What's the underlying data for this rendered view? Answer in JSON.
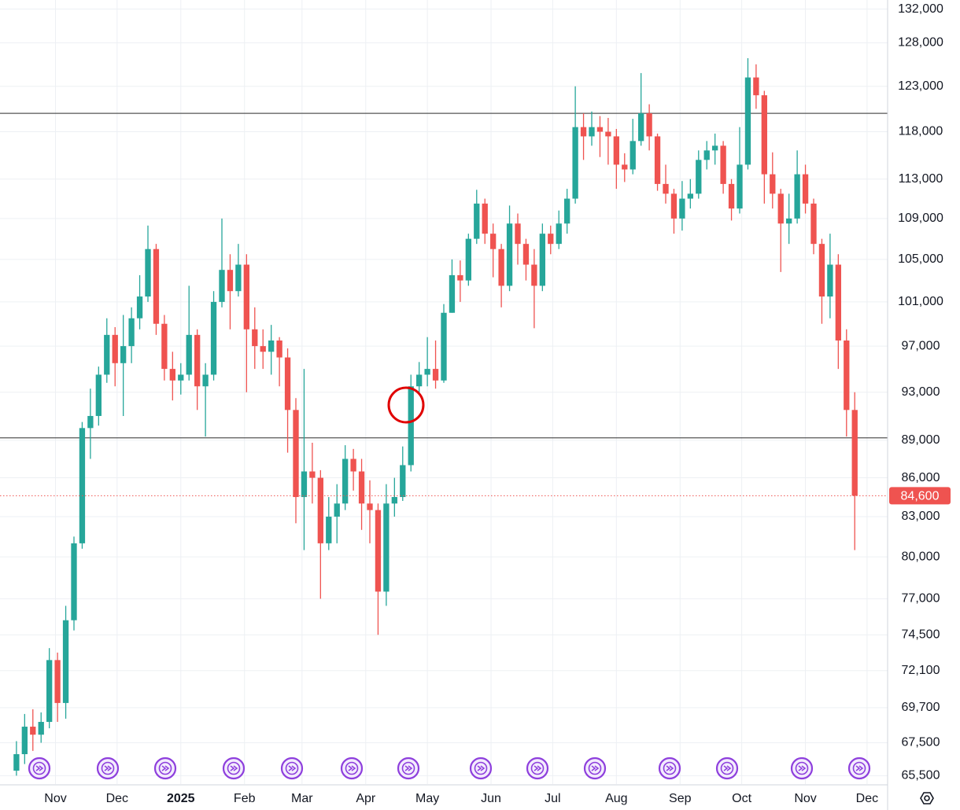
{
  "chart_data": {
    "type": "candlestick",
    "log_scale": true,
    "grid": true,
    "up_color": "#26a69a",
    "down_color": "#ef5350",
    "hline_color": "#555555",
    "last_label": "84,600",
    "xlim": [
      "2024-10-05",
      "2025-12-11"
    ],
    "ylim": [
      65000,
      133100
    ],
    "yticks": [
      {
        "value": 132000,
        "label": "132,000"
      },
      {
        "value": 128000,
        "label": "128,000"
      },
      {
        "value": 123000,
        "label": "123,000"
      },
      {
        "value": 118000,
        "label": "118,000"
      },
      {
        "value": 113000,
        "label": "113,000"
      },
      {
        "value": 109000,
        "label": "109,000"
      },
      {
        "value": 105000,
        "label": "105,000"
      },
      {
        "value": 101000,
        "label": "101,000"
      },
      {
        "value": 97000,
        "label": "97,000"
      },
      {
        "value": 93000,
        "label": "93,000"
      },
      {
        "value": 89000,
        "label": "89,000"
      },
      {
        "value": 86000,
        "label": "86,000"
      },
      {
        "value": 83000,
        "label": "83,000"
      },
      {
        "value": 80000,
        "label": "80,000"
      },
      {
        "value": 77000,
        "label": "77,000"
      },
      {
        "value": 74500,
        "label": "74,500"
      },
      {
        "value": 72100,
        "label": "72,100"
      },
      {
        "value": 69700,
        "label": "69,700"
      },
      {
        "value": 67500,
        "label": "67,500"
      },
      {
        "value": 65500,
        "label": "65,500"
      }
    ],
    "xticks": [
      {
        "value": "2024-11-01",
        "label": "Nov"
      },
      {
        "value": "2024-12-01",
        "label": "Dec"
      },
      {
        "value": "2025-01-01",
        "label": "2025"
      },
      {
        "value": "2025-02-01",
        "label": "Feb"
      },
      {
        "value": "2025-03-01",
        "label": "Mar"
      },
      {
        "value": "2025-04-01",
        "label": "Apr"
      },
      {
        "value": "2025-05-01",
        "label": "May"
      },
      {
        "value": "2025-06-01",
        "label": "Jun"
      },
      {
        "value": "2025-07-01",
        "label": "Jul"
      },
      {
        "value": "2025-08-01",
        "label": "Aug"
      },
      {
        "value": "2025-09-01",
        "label": "Sep"
      },
      {
        "value": "2025-10-01",
        "label": "Oct"
      },
      {
        "value": "2025-11-01",
        "label": "Nov"
      },
      {
        "value": "2025-12-01",
        "label": "Dec"
      }
    ],
    "hlines": [
      120000,
      89200
    ],
    "x": [
      "2024-10-13",
      "2024-10-17",
      "2024-10-21",
      "2024-10-25",
      "2024-10-29",
      "2024-11-02",
      "2024-11-06",
      "2024-11-10",
      "2024-11-14",
      "2024-11-18",
      "2024-11-22",
      "2024-11-26",
      "2024-11-30",
      "2024-12-04",
      "2024-12-08",
      "2024-12-12",
      "2024-12-16",
      "2024-12-20",
      "2024-12-24",
      "2024-12-28",
      "2025-01-01",
      "2025-01-05",
      "2025-01-09",
      "2025-01-13",
      "2025-01-17",
      "2025-01-21",
      "2025-01-25",
      "2025-01-29",
      "2025-02-02",
      "2025-02-06",
      "2025-02-10",
      "2025-02-14",
      "2025-02-18",
      "2025-02-22",
      "2025-02-26",
      "2025-03-02",
      "2025-03-06",
      "2025-03-10",
      "2025-03-14",
      "2025-03-18",
      "2025-03-22",
      "2025-03-26",
      "2025-03-30",
      "2025-04-03",
      "2025-04-07",
      "2025-04-11",
      "2025-04-15",
      "2025-04-19",
      "2025-04-23",
      "2025-04-27",
      "2025-05-01",
      "2025-05-05",
      "2025-05-09",
      "2025-05-13",
      "2025-05-17",
      "2025-05-21",
      "2025-05-25",
      "2025-05-29",
      "2025-06-02",
      "2025-06-06",
      "2025-06-10",
      "2025-06-14",
      "2025-06-18",
      "2025-06-22",
      "2025-06-26",
      "2025-06-30",
      "2025-07-04",
      "2025-07-08",
      "2025-07-12",
      "2025-07-16",
      "2025-07-20",
      "2025-07-24",
      "2025-07-28",
      "2025-08-01",
      "2025-08-05",
      "2025-08-09",
      "2025-08-13",
      "2025-08-17",
      "2025-08-21",
      "2025-08-25",
      "2025-08-29",
      "2025-09-02",
      "2025-09-06",
      "2025-09-10",
      "2025-09-14",
      "2025-09-18",
      "2025-09-22",
      "2025-09-26",
      "2025-09-30",
      "2025-10-04",
      "2025-10-08",
      "2025-10-12",
      "2025-10-16",
      "2025-10-20",
      "2025-10-24",
      "2025-10-28",
      "2025-11-01",
      "2025-11-05",
      "2025-11-09",
      "2025-11-13",
      "2025-11-17",
      "2025-11-21",
      "2025-11-25"
    ],
    "open": [
      65800,
      66800,
      68500,
      68000,
      68800,
      72800,
      70000,
      75500,
      81000,
      90000,
      91000,
      94500,
      98000,
      95500,
      97000,
      99500,
      101500,
      106000,
      99000,
      95000,
      94000,
      94500,
      98000,
      93500,
      94500,
      101000,
      104000,
      102000,
      104500,
      98500,
      97000,
      96500,
      97500,
      96000,
      91500,
      84500,
      86500,
      86000,
      81000,
      83000,
      84000,
      87500,
      86500,
      84000,
      83500,
      77500,
      84000,
      84500,
      87000,
      93500,
      94500,
      95000,
      94000,
      100000,
      103500,
      103000,
      107000,
      110500,
      107500,
      106000,
      102500,
      108500,
      106500,
      104500,
      102500,
      107500,
      106500,
      108500,
      111000,
      118500,
      117500,
      118500,
      118000,
      117500,
      114500,
      114000,
      117000,
      120000,
      117500,
      112500,
      111500,
      109000,
      111000,
      111500,
      115000,
      116000,
      116500,
      112500,
      110000,
      114500,
      124000,
      122000,
      113500,
      111500,
      108500,
      109000,
      113500,
      110500,
      106500,
      101500,
      104500,
      97500,
      91500
    ],
    "high": [
      67600,
      69300,
      69600,
      69400,
      73600,
      73300,
      76500,
      81500,
      90500,
      93300,
      95200,
      99500,
      98700,
      99800,
      100500,
      103500,
      108300,
      106500,
      99800,
      96500,
      95500,
      102500,
      98500,
      95500,
      102000,
      109000,
      105500,
      106500,
      105500,
      100500,
      98500,
      98900,
      97800,
      96800,
      92500,
      95000,
      88800,
      86600,
      84500,
      85500,
      88600,
      88300,
      87500,
      85800,
      84000,
      85500,
      86000,
      88500,
      94500,
      95600,
      97800,
      97500,
      100800,
      105000,
      104900,
      107500,
      111900,
      111000,
      108500,
      106500,
      110300,
      109500,
      107000,
      106000,
      108500,
      108300,
      109800,
      112000,
      123000,
      120000,
      120200,
      119700,
      119500,
      118300,
      115700,
      119400,
      124500,
      121000,
      117800,
      114500,
      112000,
      112800,
      113000,
      116000,
      117000,
      117800,
      117000,
      113000,
      118500,
      126200,
      125500,
      122500,
      115800,
      112000,
      111500,
      116000,
      114500,
      111000,
      107000,
      107500,
      105500,
      98500,
      93000
    ],
    "low": [
      65500,
      66200,
      67000,
      67500,
      68400,
      68800,
      69000,
      74800,
      80600,
      87500,
      90200,
      93800,
      93500,
      91000,
      95500,
      98500,
      101000,
      98000,
      94000,
      92300,
      92800,
      94000,
      91500,
      89300,
      94000,
      100500,
      98500,
      101500,
      93000,
      95000,
      95000,
      94500,
      93500,
      88000,
      82500,
      80500,
      84000,
      77000,
      80500,
      81000,
      83500,
      85000,
      82000,
      81000,
      74500,
      76500,
      83000,
      84200,
      86500,
      92800,
      93500,
      93300,
      93800,
      100000,
      101000,
      102500,
      106500,
      106500,
      103300,
      100500,
      102000,
      104500,
      103000,
      98600,
      102000,
      105500,
      106000,
      107500,
      110500,
      115000,
      116500,
      115300,
      114500,
      112000,
      112700,
      113500,
      116500,
      116000,
      111800,
      110500,
      107500,
      107800,
      110000,
      111000,
      114000,
      114500,
      111500,
      108800,
      109500,
      114000,
      120500,
      110500,
      110000,
      103800,
      106500,
      108500,
      109500,
      105500,
      99000,
      99500,
      95000,
      89300,
      80500
    ],
    "close": [
      66800,
      68500,
      68000,
      68800,
      72800,
      70000,
      75500,
      81000,
      90000,
      91000,
      94500,
      98000,
      95500,
      97000,
      99500,
      101500,
      106000,
      99000,
      95000,
      94000,
      94500,
      98000,
      93500,
      94500,
      101000,
      104000,
      102000,
      104500,
      98500,
      97000,
      96500,
      97500,
      96000,
      91500,
      84500,
      86500,
      86000,
      81000,
      83000,
      84000,
      87500,
      86500,
      84000,
      83500,
      77500,
      84000,
      84500,
      87000,
      93500,
      94500,
      95000,
      94000,
      100000,
      103500,
      103000,
      107000,
      110500,
      107500,
      106000,
      102500,
      108500,
      106500,
      104500,
      102500,
      107500,
      106500,
      108500,
      111000,
      118500,
      117500,
      118500,
      118000,
      117500,
      114500,
      114000,
      117000,
      120000,
      117500,
      112500,
      111500,
      109000,
      111000,
      111500,
      115000,
      116000,
      116500,
      112500,
      110000,
      114500,
      124000,
      122000,
      113500,
      111500,
      108500,
      109000,
      113500,
      110500,
      106500,
      101500,
      104500,
      97500,
      91500,
      84600
    ]
  }
}
